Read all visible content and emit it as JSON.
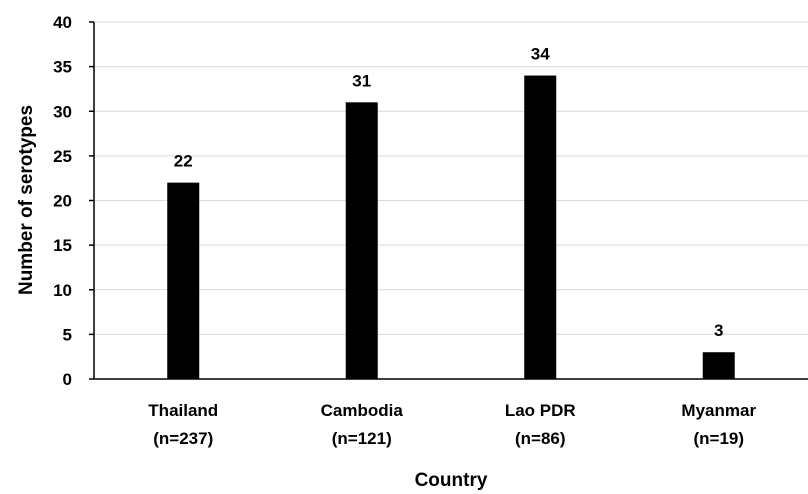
{
  "chart_data": {
    "type": "bar",
    "categories": [
      [
        "Thailand",
        "(n=237)"
      ],
      [
        "Cambodia",
        "(n=121)"
      ],
      [
        "Lao PDR",
        "(n=86)"
      ],
      [
        "Myanmar",
        "(n=19)"
      ]
    ],
    "values": [
      22,
      31,
      34,
      3
    ],
    "data_labels": [
      "22",
      "31",
      "34",
      "3"
    ],
    "xlabel": "Country",
    "ylabel": "Number of serotypes",
    "ylim": [
      0,
      40
    ],
    "yticks": [
      0,
      5,
      10,
      15,
      20,
      25,
      30,
      35,
      40
    ],
    "grid": true,
    "bar_color": "#000000",
    "grid_color": "#d9d9d9",
    "axis_color": "#000000"
  }
}
